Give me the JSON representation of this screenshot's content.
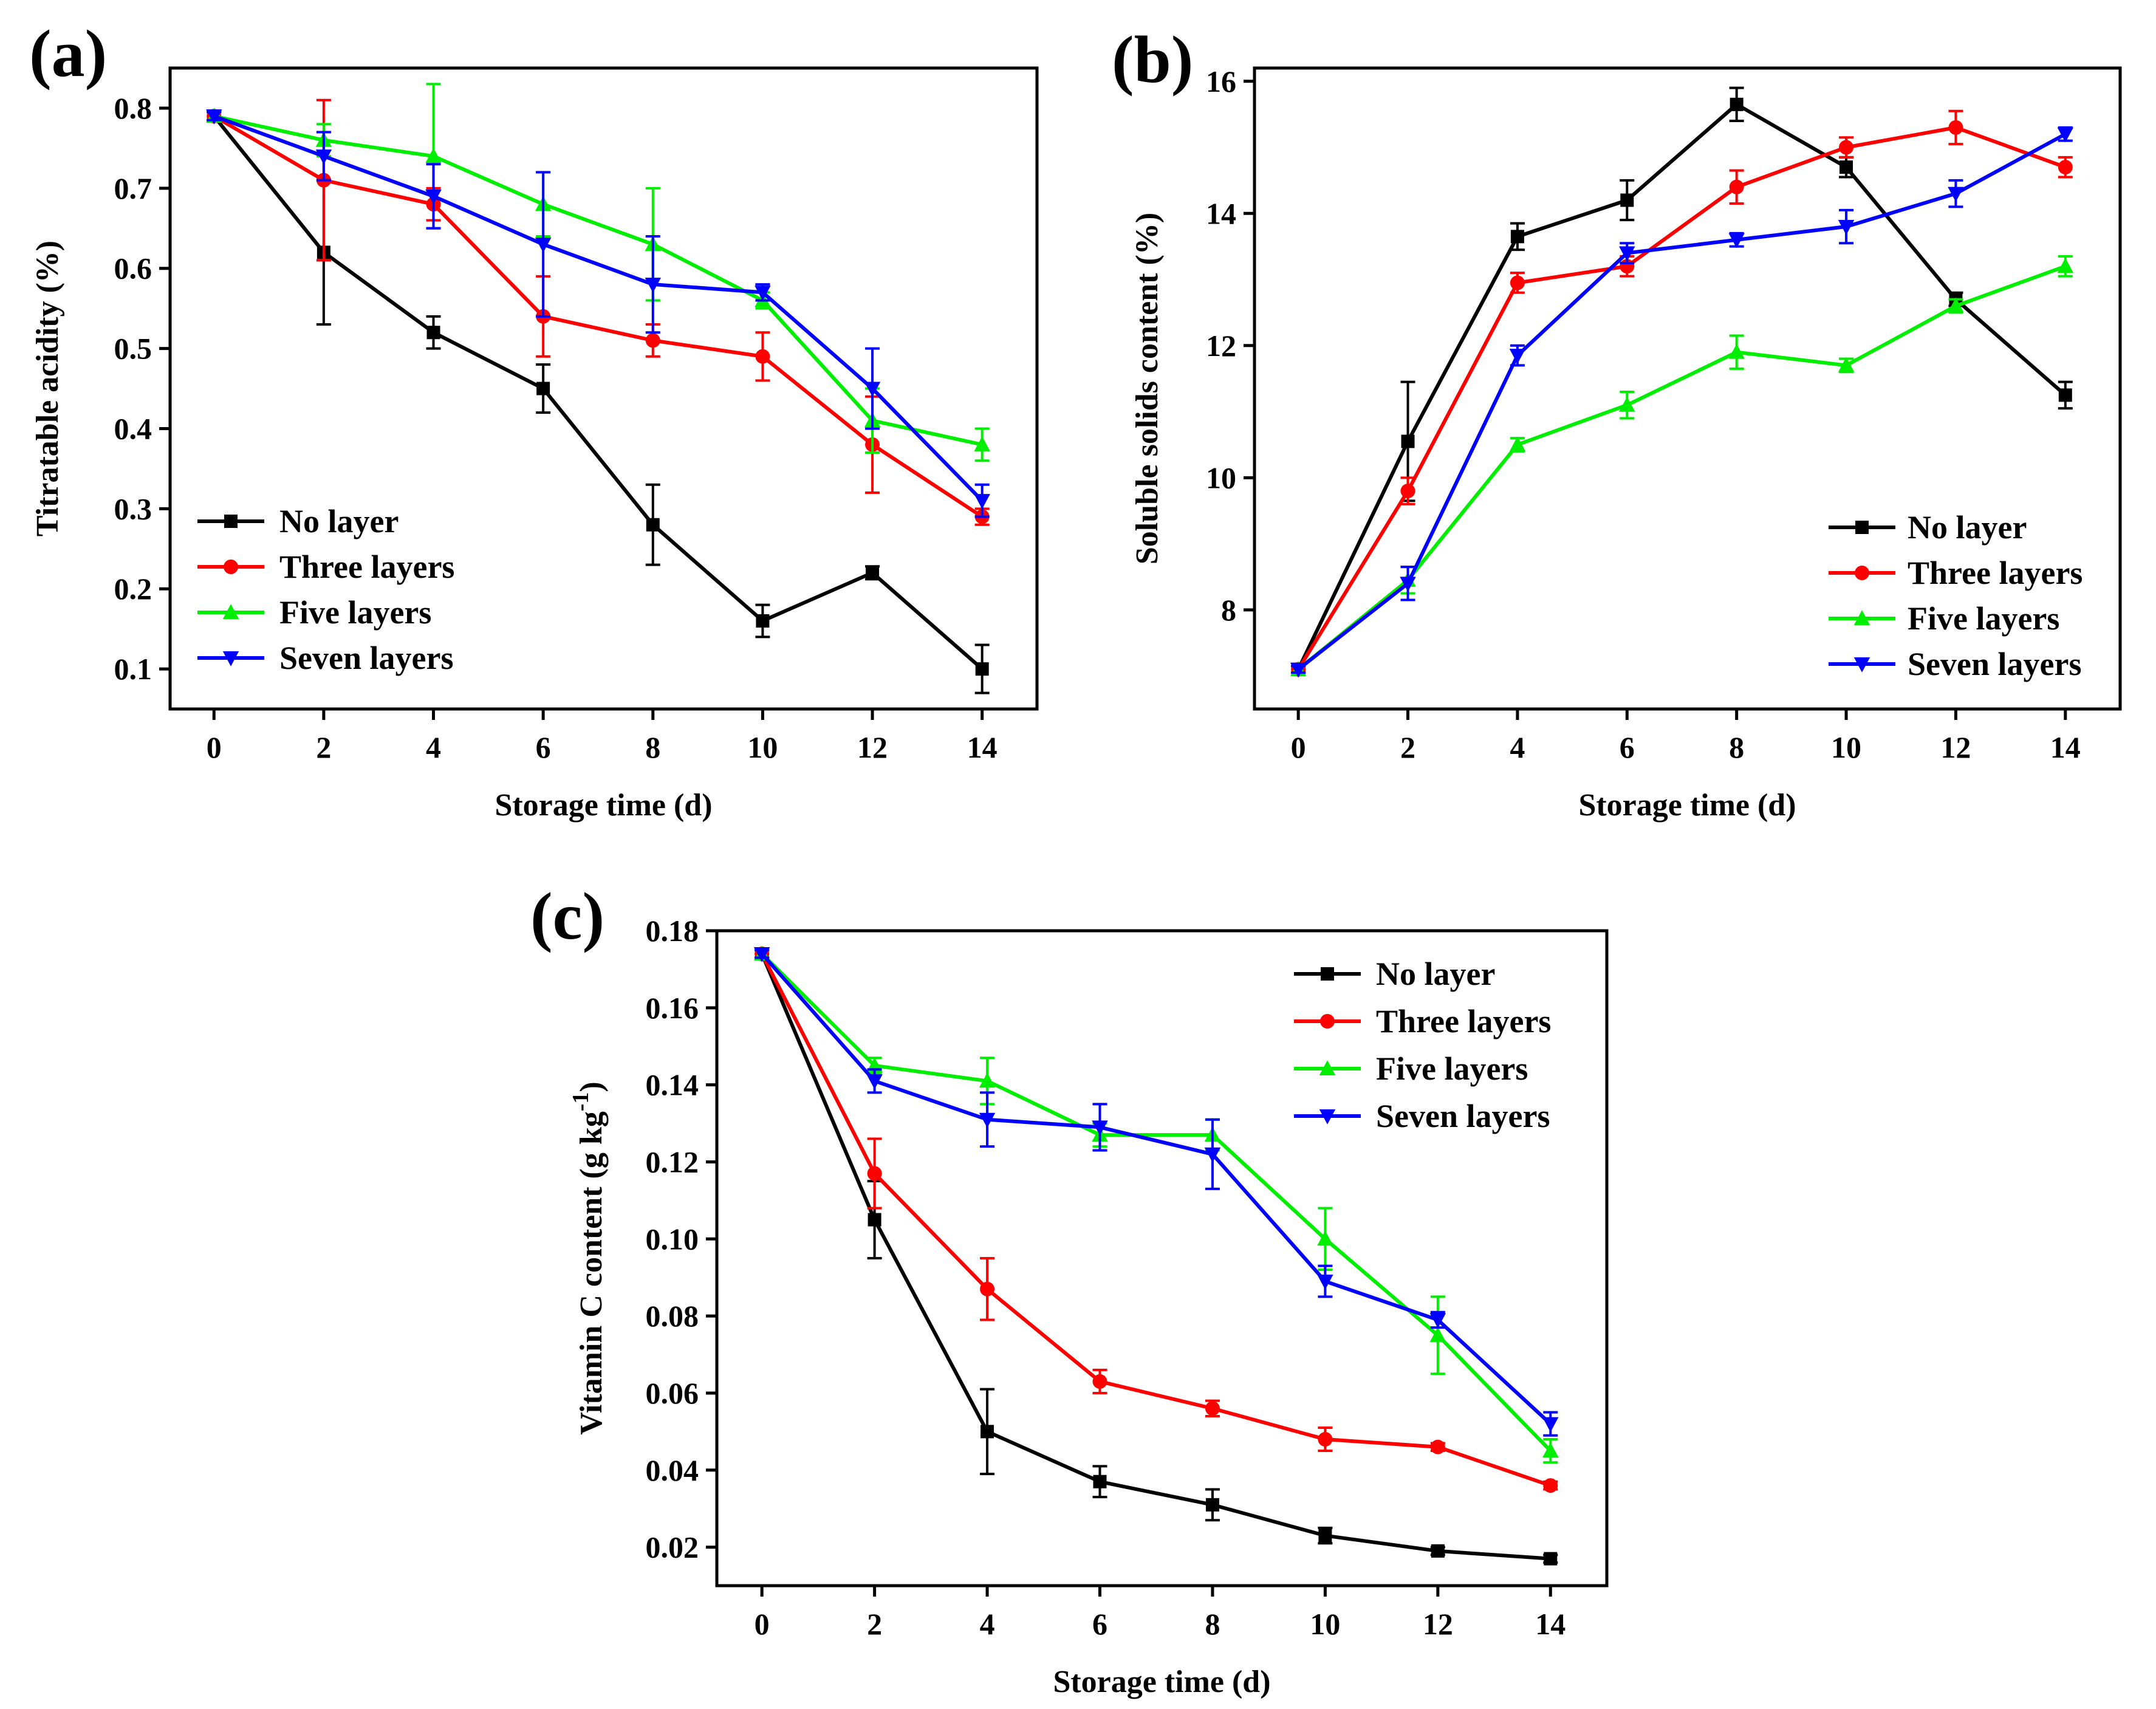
{
  "chart_data": [
    {
      "panel": "(a)",
      "type": "line",
      "title": "",
      "xlabel": "Storage time (d)",
      "ylabel": "Titratable acidity (%)",
      "xlim": [
        -0.8,
        15
      ],
      "ylim": [
        0.05,
        0.85
      ],
      "xticks": [
        0,
        2,
        4,
        6,
        8,
        10,
        12,
        14
      ],
      "yticks": [
        0.1,
        0.2,
        0.3,
        0.4,
        0.5,
        0.6,
        0.7,
        0.8
      ],
      "ytick_decimals": 1,
      "legend_position": "bottom-left",
      "x": [
        0,
        2,
        4,
        6,
        8,
        10,
        12,
        14
      ],
      "series": [
        {
          "name": "No layer",
          "color": "#000000",
          "marker": "square",
          "values": [
            0.79,
            0.62,
            0.52,
            0.45,
            0.28,
            0.16,
            0.22,
            0.1
          ],
          "errors": [
            0.005,
            0.09,
            0.02,
            0.03,
            0.05,
            0.02,
            0.008,
            0.03
          ]
        },
        {
          "name": "Three layers",
          "color": "#ff0000",
          "marker": "circle",
          "values": [
            0.79,
            0.71,
            0.68,
            0.54,
            0.51,
            0.49,
            0.38,
            0.29
          ],
          "errors": [
            0.005,
            0.1,
            0.02,
            0.05,
            0.02,
            0.03,
            0.06,
            0.01
          ]
        },
        {
          "name": "Five layers",
          "color": "#00ee00",
          "marker": "triangle-up",
          "values": [
            0.79,
            0.76,
            0.74,
            0.68,
            0.63,
            0.56,
            0.41,
            0.38
          ],
          "errors": [
            0.005,
            0.02,
            0.09,
            0.04,
            0.07,
            0.01,
            0.04,
            0.02
          ]
        },
        {
          "name": "Seven layers",
          "color": "#0000ff",
          "marker": "triangle-down",
          "values": [
            0.79,
            0.74,
            0.69,
            0.63,
            0.58,
            0.57,
            0.45,
            0.31
          ],
          "errors": [
            0.005,
            0.03,
            0.04,
            0.09,
            0.06,
            0.01,
            0.05,
            0.02
          ]
        }
      ]
    },
    {
      "panel": "(b)",
      "type": "line",
      "title": "",
      "xlabel": "Storage time (d)",
      "ylabel": "Soluble solids content (%)",
      "xlim": [
        -0.8,
        15
      ],
      "ylim": [
        6.5,
        16.2
      ],
      "xticks": [
        0,
        2,
        4,
        6,
        8,
        10,
        12,
        14
      ],
      "yticks": [
        8,
        10,
        12,
        14,
        16
      ],
      "ytick_decimals": 0,
      "legend_position": "bottom-right",
      "x": [
        0,
        2,
        4,
        6,
        8,
        10,
        12,
        14
      ],
      "series": [
        {
          "name": "No layer",
          "color": "#000000",
          "marker": "square",
          "values": [
            7.1,
            10.55,
            13.65,
            14.2,
            15.65,
            14.7,
            12.7,
            11.25
          ],
          "errors": [
            0.05,
            0.9,
            0.2,
            0.3,
            0.25,
            0.15,
            0.1,
            0.2
          ]
        },
        {
          "name": "Three layers",
          "color": "#ff0000",
          "marker": "circle",
          "values": [
            7.1,
            9.8,
            12.95,
            13.2,
            14.4,
            15.0,
            15.3,
            14.7
          ],
          "errors": [
            0.05,
            0.2,
            0.15,
            0.15,
            0.25,
            0.15,
            0.25,
            0.15
          ]
        },
        {
          "name": "Five layers",
          "color": "#00ee00",
          "marker": "triangle-up",
          "values": [
            7.1,
            8.45,
            10.5,
            11.1,
            11.9,
            11.7,
            12.6,
            13.2
          ],
          "errors": [
            0.05,
            0.2,
            0.1,
            0.2,
            0.25,
            0.1,
            0.1,
            0.15
          ]
        },
        {
          "name": "Seven layers",
          "color": "#0000ff",
          "marker": "triangle-down",
          "values": [
            7.1,
            8.4,
            11.85,
            13.4,
            13.6,
            13.8,
            14.3,
            15.2
          ],
          "errors": [
            0.05,
            0.25,
            0.15,
            0.15,
            0.1,
            0.25,
            0.2,
            0.1
          ]
        }
      ]
    },
    {
      "panel": "(c)",
      "type": "line",
      "title": "",
      "xlabel": "Storage time (d)",
      "ylabel": "Vitamin C content (g kg",
      "ylabel_sup": "-1",
      "ylabel_close": ")",
      "xlim": [
        -0.8,
        15
      ],
      "ylim": [
        0.01,
        0.18
      ],
      "xticks": [
        0,
        2,
        4,
        6,
        8,
        10,
        12,
        14
      ],
      "yticks": [
        0.02,
        0.04,
        0.06,
        0.08,
        0.1,
        0.12,
        0.14,
        0.16,
        0.18
      ],
      "ytick_decimals": 2,
      "legend_position": "top-right",
      "x": [
        0,
        2,
        4,
        6,
        8,
        10,
        12,
        14
      ],
      "series": [
        {
          "name": "No layer",
          "color": "#000000",
          "marker": "square",
          "values": [
            0.174,
            0.105,
            0.05,
            0.037,
            0.031,
            0.023,
            0.019,
            0.017
          ],
          "errors": [
            0.001,
            0.01,
            0.011,
            0.004,
            0.004,
            0.002,
            0.001,
            0.001
          ]
        },
        {
          "name": "Three layers",
          "color": "#ff0000",
          "marker": "circle",
          "values": [
            0.174,
            0.117,
            0.087,
            0.063,
            0.056,
            0.048,
            0.046,
            0.036
          ],
          "errors": [
            0.001,
            0.009,
            0.008,
            0.003,
            0.002,
            0.003,
            0.001,
            0.001
          ]
        },
        {
          "name": "Five layers",
          "color": "#00ee00",
          "marker": "triangle-up",
          "values": [
            0.174,
            0.145,
            0.141,
            0.127,
            0.127,
            0.1,
            0.075,
            0.045
          ],
          "errors": [
            0.001,
            0.002,
            0.006,
            0.003,
            0.004,
            0.008,
            0.01,
            0.003
          ]
        },
        {
          "name": "Seven layers",
          "color": "#0000ff",
          "marker": "triangle-down",
          "values": [
            0.174,
            0.141,
            0.131,
            0.129,
            0.122,
            0.089,
            0.079,
            0.052
          ],
          "errors": [
            0.001,
            0.003,
            0.007,
            0.006,
            0.009,
            0.004,
            0.002,
            0.003
          ]
        }
      ]
    }
  ]
}
